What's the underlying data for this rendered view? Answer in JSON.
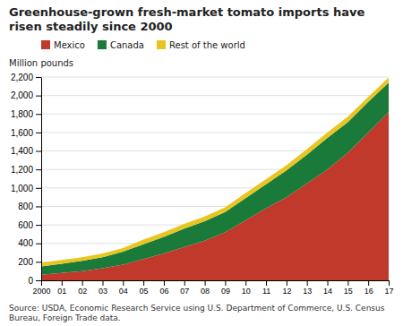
{
  "chart_data": {
    "type": "area",
    "stacked": true,
    "title": "Greenhouse-grown fresh-market tomato imports have risen steadily since 2000",
    "y_label": "Million pounds",
    "annotations": [
      "Source: USDA, Economic Research Service using U.S. Department of Commerce, U.S. Census\nBureau, Foreign Trade data."
    ],
    "x": [
      2000,
      2001,
      2002,
      2003,
      2004,
      2005,
      2006,
      2007,
      2008,
      2009,
      2010,
      2011,
      2012,
      2013,
      2014,
      2015,
      2016,
      2017
    ],
    "xlim": [
      2000,
      2017
    ],
    "xticks": [
      2000,
      {
        "value": 2001,
        "label": "01"
      },
      {
        "value": 2002,
        "label": "02"
      },
      {
        "value": 2003,
        "label": "03"
      },
      {
        "value": 2004,
        "label": "04"
      },
      {
        "value": 2005,
        "label": "05"
      },
      {
        "value": 2006,
        "label": "06"
      },
      {
        "value": 2007,
        "label": "07"
      },
      {
        "value": 2008,
        "label": "08"
      },
      {
        "value": 2009,
        "label": "09"
      },
      {
        "value": 2010,
        "label": "10"
      },
      {
        "value": 2011,
        "label": "11"
      },
      {
        "value": 2012,
        "label": "12"
      },
      {
        "value": 2013,
        "label": "13"
      },
      {
        "value": 2014,
        "label": "14"
      },
      {
        "value": 2015,
        "label": "15"
      },
      {
        "value": 2016,
        "label": "16"
      },
      {
        "value": 2017,
        "label": "17"
      }
    ],
    "ylim": [
      0,
      2200
    ],
    "yticks": [
      0,
      200,
      400,
      600,
      800,
      {
        "value": 1000,
        "label": "1,000"
      },
      {
        "value": 1200,
        "label": "1,200"
      },
      {
        "value": 1400,
        "label": "1,400"
      },
      {
        "value": 1600,
        "label": "1,600"
      },
      {
        "value": 1800,
        "label": "1,800"
      },
      {
        "value": 2000,
        "label": "2,000"
      },
      {
        "value": 2200,
        "label": "2,200"
      }
    ],
    "series": [
      {
        "name": "Mexico",
        "color": "#c0392b",
        "values": [
          60,
          80,
          100,
          130,
          170,
          230,
          290,
          360,
          430,
          520,
          650,
          780,
          900,
          1050,
          1200,
          1380,
          1600,
          1820
        ]
      },
      {
        "name": "Canada",
        "color": "#1a7a3a",
        "values": [
          90,
          100,
          110,
          120,
          140,
          160,
          180,
          200,
          210,
          220,
          240,
          260,
          290,
          310,
          340,
          330,
          330,
          320
        ]
      },
      {
        "name": "Rest of the world",
        "color": "#e8c520",
        "values": [
          40,
          40,
          40,
          40,
          40,
          50,
          50,
          50,
          50,
          50,
          55,
          55,
          55,
          60,
          60,
          60,
          55,
          55
        ]
      }
    ],
    "grid": true,
    "legend": "upper left"
  }
}
